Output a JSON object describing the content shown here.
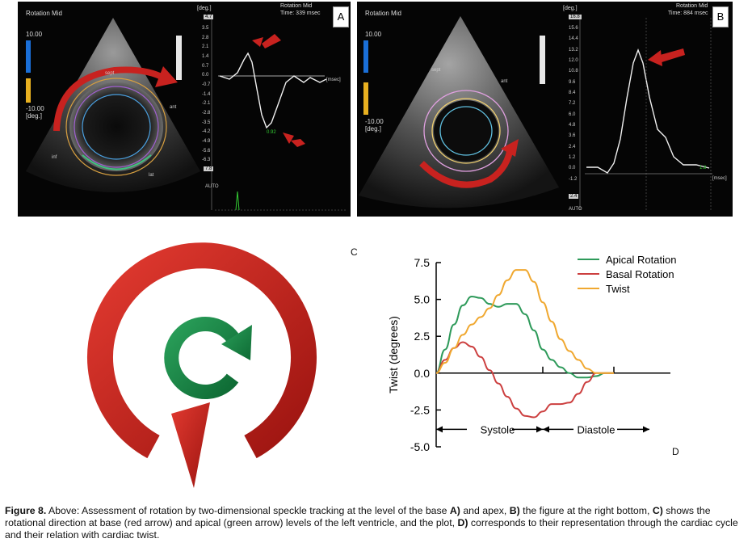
{
  "panel_a": {
    "letter": "A",
    "header_label": "Rotation Mid",
    "top_right_line1": "Rotation Mid",
    "top_right_line2": "Time: 339 msec",
    "scale_top": "10.00",
    "scale_bottom_line1": "-10.00",
    "scale_bottom_line2": "[deg.]",
    "axis_unit": "[deg.]",
    "axis_max": "4.7",
    "axis_min": "7.8",
    "ticks": [
      "3.5",
      "2.8",
      "2.1",
      "1.4",
      "0.7",
      "0.0",
      "-0.7",
      "-1.4",
      "-2.1",
      "-2.8",
      "-3.5",
      "-4.2",
      "-4.9",
      "-5.6",
      "-6.3"
    ],
    "msec_label": "[msec]",
    "value_label": "0.92",
    "auto_label": "AUTO",
    "seg_labels": [
      "sept",
      "ant",
      "inf",
      "lat",
      "ant"
    ]
  },
  "panel_b": {
    "letter": "B",
    "header_label": "Rotation Mid",
    "top_right_line1": "Rotation Mid",
    "top_right_line2": "Time: 884 msec",
    "scale_top": "10.00",
    "scale_bottom_line1": "-10.00",
    "scale_bottom_line2": "[deg.]",
    "axis_unit": "[deg.]",
    "axis_max": "16.8",
    "axis_min": "2.4",
    "ticks": [
      "15.6",
      "14.4",
      "13.2",
      "12.0",
      "10.8",
      "9.6",
      "8.4",
      "7.2",
      "6.0",
      "4.8",
      "3.6",
      "2.4",
      "1.2",
      "0.0",
      "-1.2"
    ],
    "msec_label": "[msec]",
    "value_label": "1.8",
    "auto_label": "AUTO",
    "seg_labels": [
      "sept",
      "ant"
    ]
  },
  "panel_c": {
    "letter": "C"
  },
  "panel_d": {
    "letter": "D"
  },
  "chart_data": {
    "type": "line",
    "title": "",
    "xlabel": "",
    "ylabel": "Twist (degrees)",
    "ylim": [
      -5.0,
      7.5
    ],
    "yticks": [
      "7.5",
      "5.0",
      "2.5",
      "0.0",
      "-2.5",
      "-5.0"
    ],
    "x": [
      0,
      0.05,
      0.1,
      0.15,
      0.2,
      0.25,
      0.3,
      0.35,
      0.4,
      0.45,
      0.5,
      0.55,
      0.6,
      0.65,
      0.7,
      0.75,
      0.8,
      0.85,
      0.9,
      0.95,
      1.0
    ],
    "series": [
      {
        "name": "Apical Rotation",
        "color": "#2e9a5a",
        "values": [
          0,
          1.6,
          3.3,
          4.6,
          5.2,
          5.1,
          4.7,
          4.5,
          4.7,
          4.7,
          4.0,
          2.9,
          1.6,
          0.9,
          0.4,
          0.0,
          -0.3,
          -0.3,
          -0.2,
          0,
          0
        ]
      },
      {
        "name": "Basal Rotation",
        "color": "#cc3f3f",
        "values": [
          0,
          0.9,
          1.7,
          2.1,
          1.8,
          1.1,
          0.2,
          -0.7,
          -1.6,
          -2.4,
          -2.9,
          -3.0,
          -2.6,
          -2.1,
          -2.1,
          -2.0,
          -1.4,
          -0.6,
          0,
          0,
          0
        ]
      },
      {
        "name": "Twist",
        "color": "#f0a830",
        "values": [
          0,
          0.7,
          1.7,
          2.6,
          3.3,
          3.8,
          4.4,
          5.3,
          6.3,
          7.0,
          7.0,
          6.2,
          4.8,
          3.5,
          2.3,
          1.5,
          0.9,
          0.3,
          0,
          0,
          0
        ]
      }
    ],
    "phases": [
      {
        "label": "Systole"
      },
      {
        "label": "Diastole"
      }
    ]
  },
  "caption": {
    "label": "Figure 8.",
    "t1": " Above: Assessment of rotation by two-dimensional speckle tracking at the level of the base ",
    "b1": "A)",
    "t2": " and apex, ",
    "b2": "B)",
    "t3": " the figure at the right bottom, ",
    "b3": "C)",
    "t4": " shows the rotational direction at base (red arrow) and apical (green arrow) levels of the left ventricle, and the plot, ",
    "b4": "D)",
    "t5": " corresponds to their representation through the cardiac cycle and their relation with cardiac twist."
  }
}
